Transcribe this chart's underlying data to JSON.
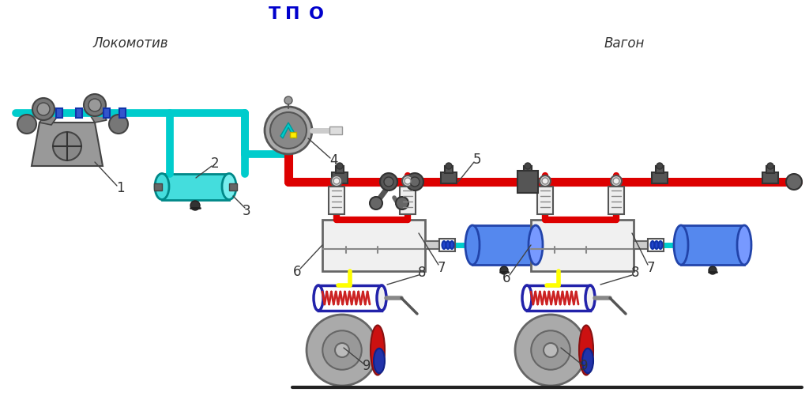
{
  "bg_color": "#ffffff",
  "cyan": "#00CCCC",
  "red": "#DD0000",
  "blue_tank": "#5588EE",
  "dark": "#555555",
  "yellow": "#FFFF00",
  "gray_body": "#888888",
  "gray_light": "#AAAAAA",
  "gray_dark": "#666666",
  "text_locomotive": "Локомотив",
  "text_wagon": "Вагон",
  "text_T": "Т",
  "text_P": "П",
  "text_O": "О"
}
